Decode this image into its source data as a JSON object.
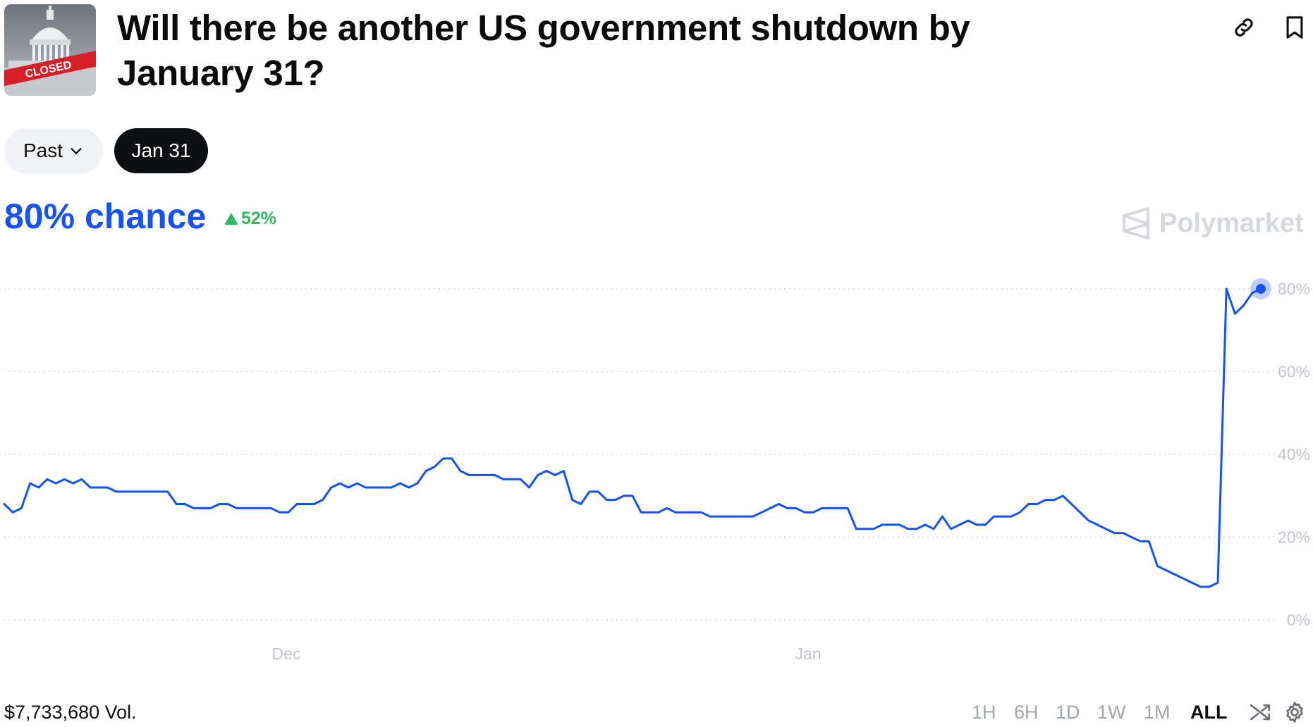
{
  "market": {
    "title": "Will there be another US government shutdown by January 31?",
    "thumbnail_stamp": "CLOSED"
  },
  "filters": {
    "past_label": "Past",
    "date_label": "Jan 31"
  },
  "summary": {
    "chance": "80% chance",
    "change": "52%",
    "watermark": "Polymarket"
  },
  "footer": {
    "volume": "$7,733,680 Vol.",
    "ranges": [
      {
        "label": "1H",
        "active": false
      },
      {
        "label": "6H",
        "active": false
      },
      {
        "label": "1D",
        "active": false
      },
      {
        "label": "1W",
        "active": false
      },
      {
        "label": "1M",
        "active": false
      },
      {
        "label": "ALL",
        "active": true
      }
    ]
  },
  "colors": {
    "accent": "#1652f0",
    "positive": "#30b861",
    "grid": "#d7dadf"
  },
  "icons": [
    "link-icon",
    "bookmark-icon",
    "chevron-down-icon",
    "triangle-up-icon",
    "shuffle-icon",
    "gear-icon"
  ],
  "chart_data": {
    "type": "line",
    "x_ticks": [
      "Dec",
      "Jan"
    ],
    "y_ticks": [
      "0%",
      "20%",
      "40%",
      "60%",
      "80%"
    ],
    "ylim": [
      0,
      80
    ],
    "grid": true,
    "series": [
      {
        "values": [
          28,
          26,
          27,
          33,
          32,
          34,
          33,
          34,
          33,
          34,
          32,
          32,
          32,
          31,
          31,
          31,
          31,
          31,
          31,
          31,
          28,
          28,
          27,
          27,
          27,
          28,
          28,
          27,
          27,
          27,
          27,
          27,
          26,
          26,
          28,
          28,
          28,
          29,
          32,
          33,
          32,
          33,
          32,
          32,
          32,
          32,
          33,
          32,
          33,
          36,
          37,
          39,
          39,
          36,
          35,
          35,
          35,
          35,
          34,
          34,
          34,
          32,
          35,
          36,
          35,
          36,
          29,
          28,
          31,
          31,
          29,
          29,
          30,
          30,
          26,
          26,
          26,
          27,
          26,
          26,
          26,
          26,
          25,
          25,
          25,
          25,
          25,
          25,
          26,
          27,
          28,
          27,
          27,
          26,
          26,
          27,
          27,
          27,
          27,
          22,
          22,
          22,
          23,
          23,
          23,
          22,
          22,
          23,
          22,
          25,
          22,
          23,
          24,
          23,
          23,
          25,
          25,
          25,
          26,
          28,
          28,
          29,
          29,
          30,
          28,
          26,
          24,
          23,
          22,
          21,
          21,
          20,
          19,
          19,
          13,
          12,
          11,
          10,
          9,
          8,
          8,
          9,
          80,
          74,
          76,
          79,
          80
        ]
      }
    ]
  }
}
